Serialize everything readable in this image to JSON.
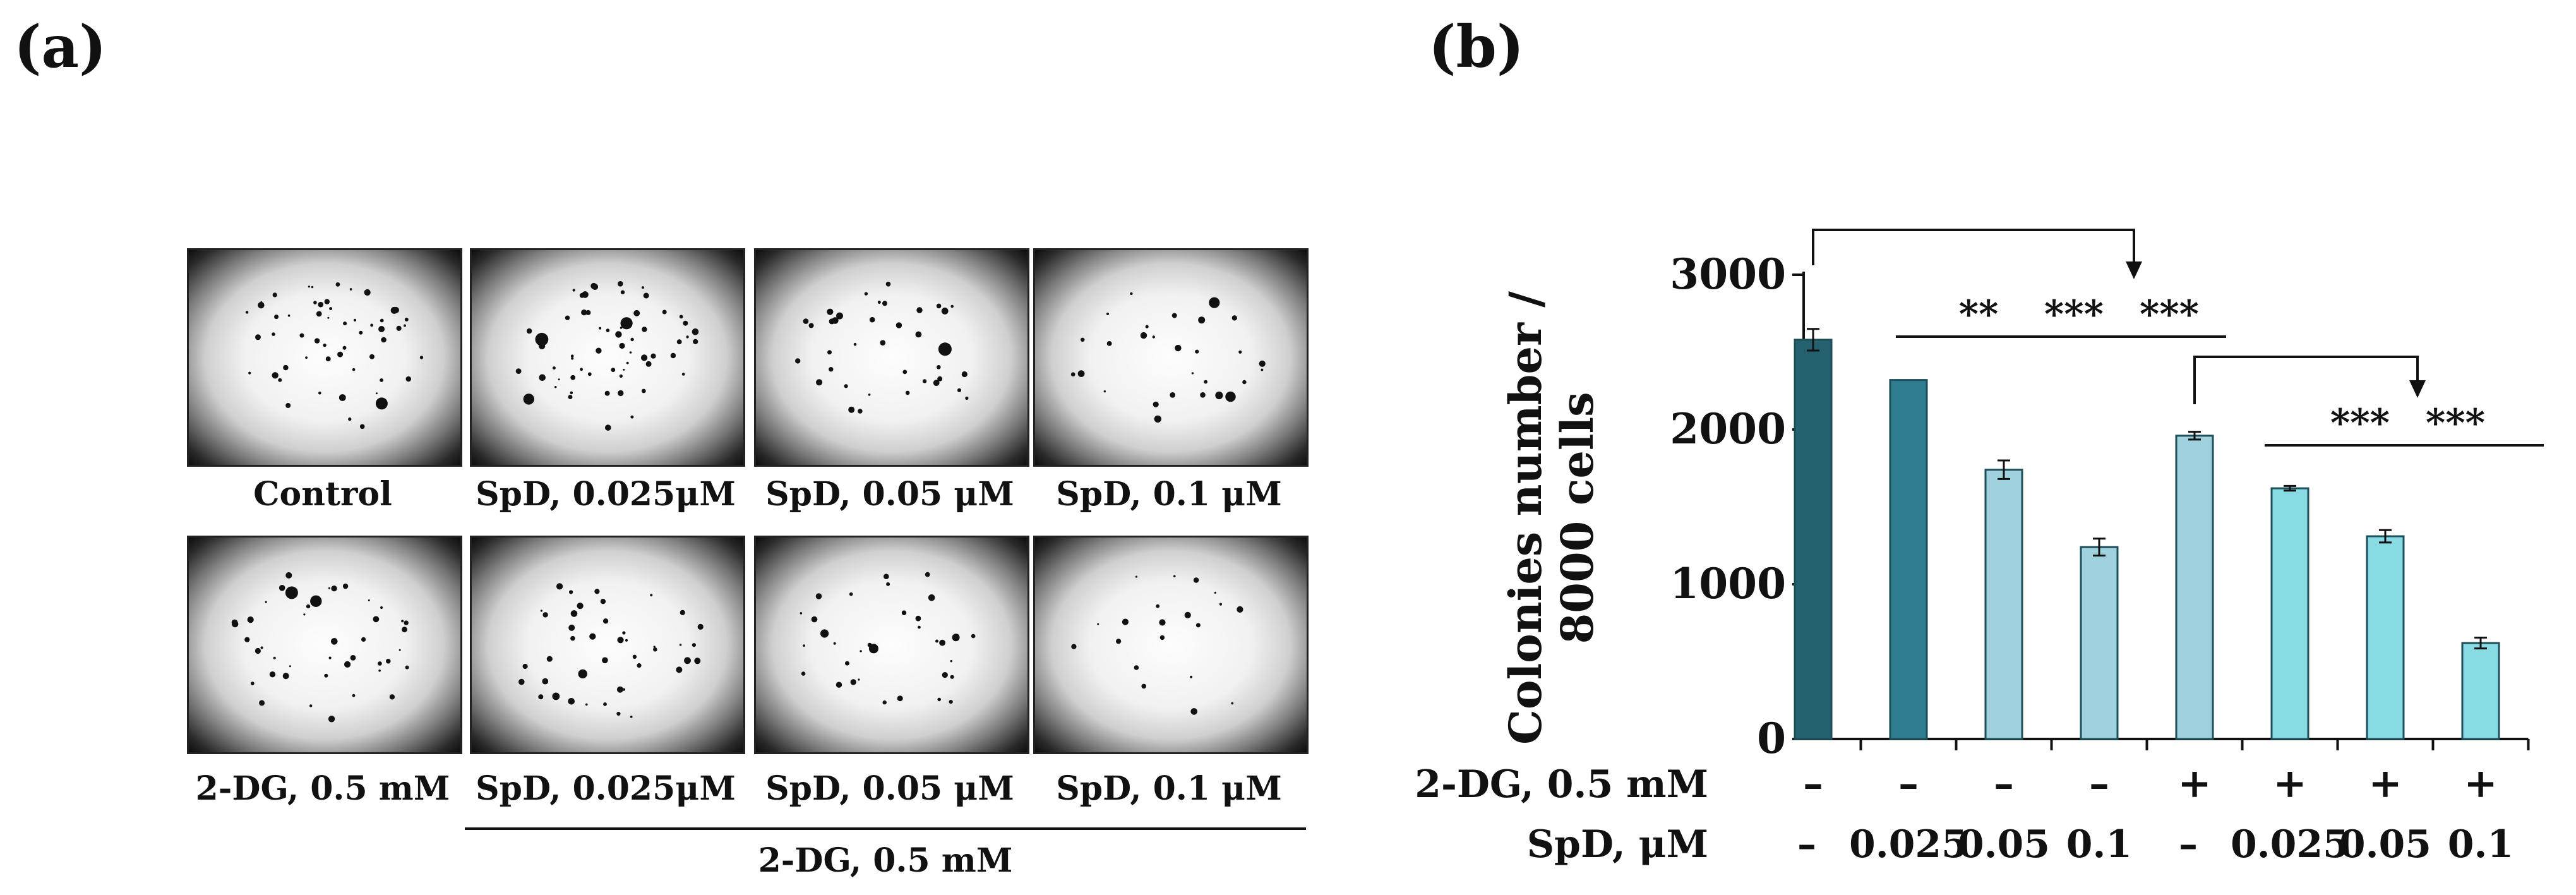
{
  "panel_a": {
    "label": "(a)",
    "images_row1": [
      "Control",
      "SpD, 0.025μM",
      "SpD, 0.05 μM",
      "SpD, 0.1 μM"
    ],
    "images_row2": [
      "2-DG, 0.5 mM",
      "SpD, 0.025μM",
      "SpD, 0.05 μM",
      "SpD, 0.1 μM"
    ],
    "group_label": "2-DG, 0.5 mM"
  },
  "panel_b": {
    "label": "(b)"
  },
  "chart_data": {
    "type": "bar",
    "ylabel_line1": "Colonies number /",
    "ylabel_line2": "8000 cells",
    "ylim": [
      0,
      3000
    ],
    "yticks": [
      "0",
      "1000",
      "2000",
      "3000"
    ],
    "values": [
      2580,
      2320,
      1740,
      1240,
      1960,
      1620,
      1310,
      620
    ],
    "errors": [
      70,
      0,
      60,
      55,
      25,
      15,
      40,
      35
    ],
    "colors": [
      "#25606e",
      "#2f7d8e",
      "#9fd1de",
      "#9fd1de",
      "#9fd1de",
      "#88dbe2",
      "#88dbe2",
      "#88dbe2"
    ],
    "row1_label": "2-DG, 0.5 mM",
    "row1_values": [
      "–",
      "–",
      "–",
      "–",
      "+",
      "+",
      "+",
      "+"
    ],
    "row2_label": "SpD, μM",
    "row2_values": [
      "–",
      "0.025",
      "0.05",
      "0.1",
      "–",
      "0.025",
      "0.05",
      "0.1"
    ],
    "significance": [
      {
        "text": "**",
        "bar": 2
      },
      {
        "text": "***",
        "bar": 3
      },
      {
        "text": "***",
        "bar": 4
      },
      {
        "text": "***",
        "bar": 6
      },
      {
        "text": "***",
        "bar": 7
      }
    ]
  }
}
